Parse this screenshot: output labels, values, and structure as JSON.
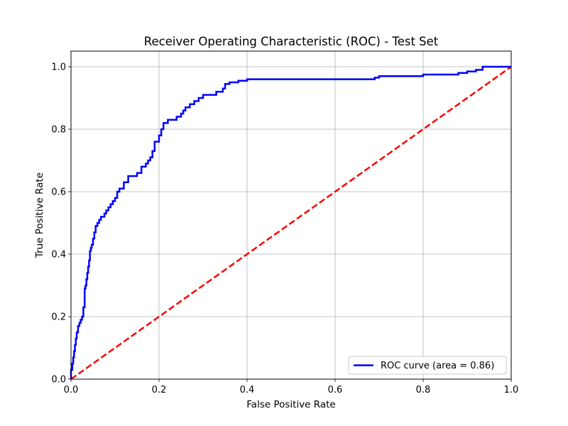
{
  "chart_data": {
    "type": "line",
    "title": "Receiver Operating Characteristic (ROC) - Test Set",
    "xlabel": "False Positive Rate",
    "ylabel": "True Positive Rate",
    "xlim": [
      0.0,
      1.0
    ],
    "ylim": [
      0.0,
      1.05
    ],
    "xticks": [
      "0.0",
      "0.2",
      "0.4",
      "0.6",
      "0.8",
      "1.0"
    ],
    "yticks": [
      "0.0",
      "0.2",
      "0.4",
      "0.6",
      "0.8",
      "1.0"
    ],
    "grid": true,
    "legend": {
      "position": "bottom-right"
    },
    "series": [
      {
        "name": "ROC curve (area = 0.86)",
        "color": "#0000ff",
        "style": "solid-step",
        "x": [
          0.0,
          0.003,
          0.005,
          0.007,
          0.009,
          0.011,
          0.013,
          0.016,
          0.019,
          0.022,
          0.025,
          0.028,
          0.031,
          0.033,
          0.035,
          0.037,
          0.039,
          0.041,
          0.043,
          0.045,
          0.047,
          0.05,
          0.053,
          0.056,
          0.06,
          0.064,
          0.068,
          0.072,
          0.076,
          0.08,
          0.085,
          0.09,
          0.095,
          0.1,
          0.105,
          0.11,
          0.12,
          0.13,
          0.14,
          0.15,
          0.16,
          0.17,
          0.175,
          0.18,
          0.185,
          0.19,
          0.2,
          0.205,
          0.21,
          0.22,
          0.23,
          0.24,
          0.25,
          0.255,
          0.26,
          0.27,
          0.28,
          0.29,
          0.3,
          0.31,
          0.33,
          0.345,
          0.35,
          0.36,
          0.38,
          0.4,
          0.45,
          0.5,
          0.55,
          0.6,
          0.65,
          0.69,
          0.7,
          0.75,
          0.8,
          0.85,
          0.88,
          0.9,
          0.92,
          0.935,
          0.94,
          1.0
        ],
        "y": [
          0.0,
          0.03,
          0.05,
          0.07,
          0.09,
          0.11,
          0.13,
          0.15,
          0.17,
          0.18,
          0.19,
          0.2,
          0.23,
          0.29,
          0.3,
          0.32,
          0.34,
          0.36,
          0.38,
          0.41,
          0.42,
          0.43,
          0.45,
          0.47,
          0.49,
          0.5,
          0.51,
          0.52,
          0.52,
          0.53,
          0.54,
          0.55,
          0.56,
          0.57,
          0.58,
          0.6,
          0.61,
          0.63,
          0.65,
          0.65,
          0.66,
          0.68,
          0.69,
          0.7,
          0.71,
          0.73,
          0.76,
          0.78,
          0.8,
          0.82,
          0.83,
          0.83,
          0.84,
          0.85,
          0.86,
          0.87,
          0.88,
          0.89,
          0.9,
          0.91,
          0.91,
          0.92,
          0.93,
          0.945,
          0.95,
          0.955,
          0.96,
          0.96,
          0.96,
          0.96,
          0.96,
          0.96,
          0.965,
          0.97,
          0.97,
          0.975,
          0.975,
          0.98,
          0.985,
          0.99,
          1.0,
          1.0
        ]
      },
      {
        "color": "#ff0000",
        "style": "dashed",
        "x": [
          0.0,
          1.0
        ],
        "y": [
          0.0,
          1.0
        ]
      }
    ]
  }
}
